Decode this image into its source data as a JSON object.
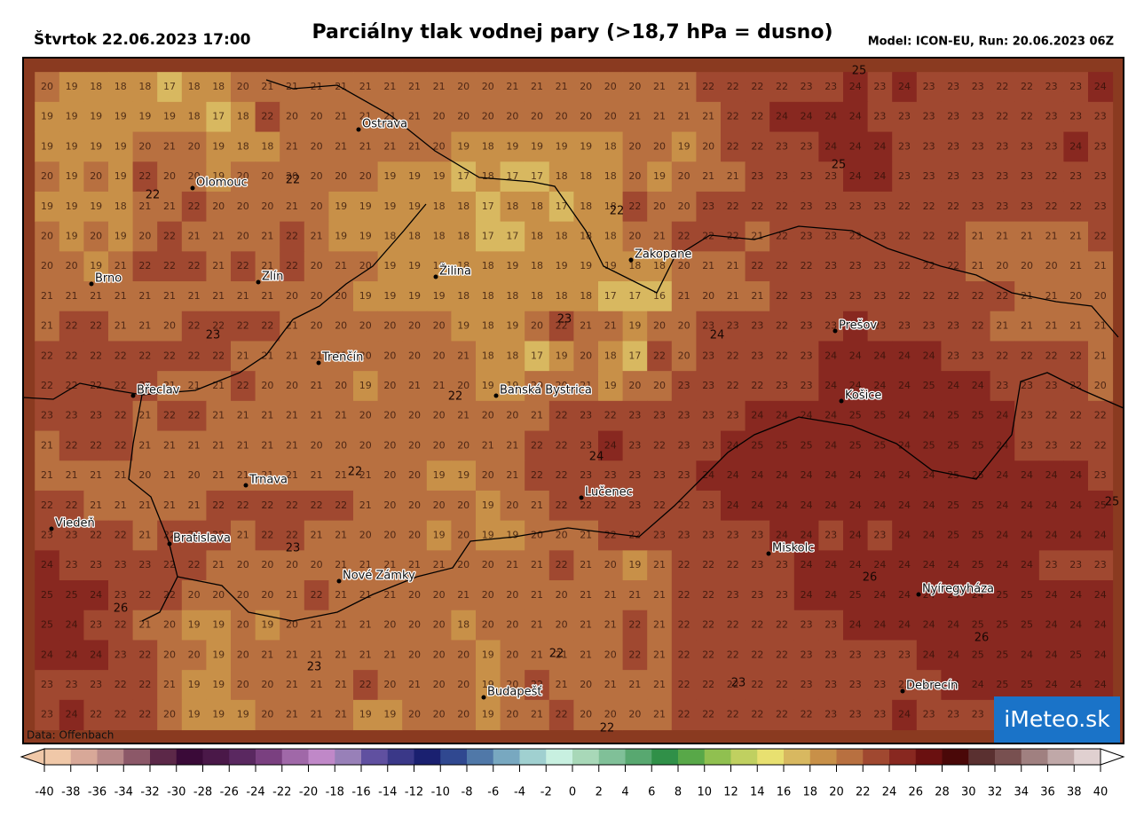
{
  "header": {
    "date": "Štvrtok 22.06.2023 17:00",
    "title": "Parciálny tlak vodnej pary (>18,7 hPa = dusno)",
    "model": "Model: ICON-EU, Run: 20.06.2023 06Z"
  },
  "source": "Data: Offenbach",
  "logo": "iMeteo.sk",
  "cities": [
    "Ostrava",
    "Olomouc",
    "Brno",
    "Zlín",
    "Žilina",
    "Zakopane",
    "Prešov",
    "Trenčín",
    "Břeclav",
    "Banská Bystrica",
    "Košice",
    "Trnava",
    "Lučenec",
    "Viedeň",
    "Bratislava",
    "Miskolc",
    "Nové Zámky",
    "Nyíregyháza",
    "Debrecín",
    "Budapešť"
  ],
  "contour_labels": [
    22,
    22,
    22,
    22,
    22,
    22,
    22,
    23,
    23,
    23,
    23,
    23,
    24,
    24,
    25,
    25,
    25,
    26,
    26,
    26
  ],
  "grid": [
    [
      20,
      19,
      18,
      18,
      18,
      17,
      18,
      18,
      20,
      21,
      21,
      21,
      21,
      21,
      21,
      21,
      21,
      20,
      20,
      21,
      21,
      21,
      20,
      20,
      20,
      21,
      21,
      22,
      22,
      22,
      22,
      23,
      23,
      24,
      23,
      24,
      23,
      23,
      23,
      22,
      22,
      23,
      23,
      24
    ],
    [
      19,
      19,
      19,
      19,
      19,
      19,
      18,
      17,
      18,
      22,
      20,
      20,
      21,
      21,
      21,
      21,
      20,
      20,
      20,
      20,
      20,
      20,
      20,
      20,
      21,
      21,
      21,
      21,
      22,
      22,
      24,
      24,
      24,
      24,
      23,
      23,
      23,
      23,
      23,
      22,
      22,
      23,
      23,
      23
    ],
    [
      19,
      19,
      19,
      19,
      20,
      21,
      20,
      19,
      18,
      18,
      21,
      20,
      21,
      21,
      21,
      21,
      20,
      19,
      18,
      19,
      19,
      19,
      19,
      18,
      20,
      20,
      19,
      20,
      22,
      22,
      23,
      23,
      24,
      24,
      24,
      23,
      23,
      23,
      23,
      23,
      23,
      23,
      24,
      23
    ],
    [
      20,
      19,
      20,
      19,
      22,
      20,
      20,
      19,
      20,
      20,
      20,
      20,
      20,
      20,
      19,
      19,
      19,
      17,
      18,
      17,
      17,
      18,
      18,
      18,
      20,
      19,
      20,
      21,
      21,
      23,
      23,
      23,
      23,
      24,
      24,
      23,
      23,
      23,
      23,
      23,
      23,
      22,
      23,
      23
    ],
    [
      19,
      19,
      19,
      18,
      21,
      21,
      22,
      20,
      20,
      20,
      21,
      20,
      19,
      19,
      19,
      19,
      18,
      18,
      17,
      18,
      18,
      17,
      18,
      18,
      22,
      20,
      20,
      23,
      22,
      22,
      22,
      23,
      23,
      23,
      23,
      22,
      22,
      22,
      23,
      23,
      23,
      22,
      22,
      23
    ],
    [
      20,
      19,
      20,
      19,
      20,
      22,
      21,
      21,
      20,
      21,
      22,
      21,
      19,
      19,
      18,
      18,
      18,
      18,
      17,
      17,
      18,
      18,
      18,
      18,
      20,
      21,
      22,
      22,
      22,
      21,
      22,
      23,
      23,
      23,
      23,
      22,
      22,
      22,
      21,
      21,
      21,
      21,
      21,
      22
    ],
    [
      20,
      20,
      19,
      21,
      22,
      22,
      22,
      21,
      22,
      21,
      22,
      20,
      21,
      20,
      19,
      19,
      18,
      18,
      18,
      19,
      18,
      19,
      19,
      19,
      18,
      18,
      20,
      21,
      21,
      22,
      22,
      22,
      23,
      23,
      23,
      22,
      22,
      22,
      21,
      20,
      20,
      20,
      21,
      21
    ],
    [
      21,
      21,
      21,
      21,
      21,
      21,
      21,
      21,
      21,
      21,
      20,
      20,
      20,
      19,
      19,
      19,
      19,
      18,
      18,
      18,
      18,
      18,
      18,
      17,
      17,
      16,
      21,
      20,
      21,
      21,
      22,
      23,
      23,
      23,
      23,
      22,
      22,
      22,
      22,
      22,
      21,
      21,
      20,
      20
    ],
    [
      21,
      22,
      22,
      21,
      21,
      20,
      22,
      22,
      22,
      22,
      21,
      20,
      20,
      20,
      20,
      20,
      20,
      19,
      18,
      19,
      20,
      22,
      21,
      21,
      19,
      20,
      20,
      23,
      23,
      23,
      22,
      23,
      23,
      24,
      23,
      23,
      23,
      23,
      22,
      21,
      21,
      21,
      21,
      21
    ],
    [
      22,
      22,
      22,
      22,
      22,
      22,
      22,
      22,
      21,
      21,
      21,
      21,
      21,
      20,
      20,
      20,
      20,
      21,
      18,
      18,
      17,
      19,
      20,
      18,
      17,
      22,
      20,
      23,
      22,
      23,
      22,
      23,
      24,
      24,
      24,
      24,
      24,
      23,
      23,
      22,
      22,
      22,
      22,
      21
    ],
    [
      22,
      22,
      22,
      22,
      22,
      21,
      21,
      21,
      22,
      20,
      20,
      21,
      20,
      19,
      20,
      21,
      21,
      20,
      19,
      19,
      20,
      20,
      21,
      19,
      20,
      20,
      23,
      23,
      22,
      22,
      23,
      23,
      24,
      24,
      24,
      24,
      25,
      24,
      24,
      23,
      23,
      23,
      22,
      20
    ],
    [
      23,
      23,
      23,
      22,
      21,
      22,
      22,
      21,
      21,
      21,
      21,
      21,
      21,
      20,
      20,
      20,
      20,
      21,
      20,
      20,
      21,
      22,
      23,
      22,
      23,
      23,
      23,
      23,
      23,
      24,
      24,
      24,
      24,
      25,
      25,
      24,
      24,
      25,
      25,
      24,
      23,
      22,
      22,
      22
    ],
    [
      21,
      22,
      22,
      22,
      21,
      21,
      21,
      21,
      21,
      21,
      21,
      20,
      20,
      20,
      20,
      20,
      20,
      20,
      21,
      21,
      22,
      22,
      23,
      24,
      23,
      22,
      23,
      23,
      24,
      25,
      25,
      25,
      24,
      25,
      25,
      24,
      25,
      25,
      25,
      24,
      23,
      23,
      22,
      22
    ],
    [
      21,
      21,
      21,
      21,
      20,
      21,
      20,
      21,
      21,
      21,
      21,
      21,
      21,
      21,
      20,
      20,
      19,
      19,
      20,
      21,
      22,
      22,
      23,
      23,
      23,
      23,
      23,
      24,
      24,
      24,
      24,
      24,
      24,
      24,
      24,
      24,
      24,
      25,
      25,
      24,
      24,
      24,
      24,
      23
    ],
    [
      22,
      22,
      21,
      21,
      21,
      21,
      21,
      22,
      22,
      22,
      22,
      22,
      22,
      21,
      20,
      20,
      20,
      20,
      19,
      20,
      21,
      22,
      22,
      22,
      23,
      22,
      22,
      23,
      24,
      24,
      24,
      24,
      24,
      24,
      24,
      24,
      24,
      25,
      25,
      24,
      24,
      24,
      24,
      25
    ],
    [
      23,
      23,
      22,
      22,
      21,
      22,
      22,
      22,
      21,
      22,
      22,
      21,
      21,
      20,
      20,
      20,
      19,
      20,
      19,
      19,
      20,
      20,
      21,
      22,
      22,
      23,
      23,
      23,
      23,
      23,
      24,
      24,
      23,
      24,
      23,
      24,
      24,
      25,
      25,
      24,
      24,
      24,
      24,
      24
    ],
    [
      24,
      23,
      23,
      23,
      23,
      22,
      22,
      21,
      20,
      20,
      20,
      20,
      21,
      21,
      21,
      21,
      21,
      20,
      20,
      21,
      21,
      22,
      21,
      20,
      19,
      21,
      22,
      22,
      22,
      23,
      23,
      24,
      24,
      24,
      24,
      24,
      24,
      24,
      25,
      24,
      24,
      23,
      23,
      23
    ],
    [
      25,
      25,
      24,
      23,
      22,
      22,
      20,
      20,
      20,
      20,
      21,
      22,
      21,
      21,
      21,
      20,
      20,
      21,
      20,
      20,
      21,
      20,
      21,
      21,
      21,
      21,
      22,
      22,
      23,
      23,
      23,
      24,
      24,
      25,
      24,
      24,
      24,
      24,
      24,
      25,
      25,
      24,
      24,
      24
    ],
    [
      25,
      24,
      23,
      22,
      21,
      20,
      19,
      19,
      20,
      19,
      20,
      21,
      21,
      21,
      20,
      20,
      20,
      18,
      20,
      20,
      21,
      20,
      21,
      21,
      22,
      21,
      22,
      22,
      22,
      22,
      22,
      23,
      23,
      24,
      24,
      24,
      24,
      24,
      25,
      25,
      25,
      24,
      24,
      24
    ],
    [
      24,
      24,
      24,
      23,
      22,
      20,
      20,
      19,
      20,
      21,
      21,
      21,
      21,
      21,
      21,
      20,
      20,
      20,
      19,
      20,
      21,
      21,
      21,
      20,
      22,
      21,
      22,
      22,
      22,
      22,
      22,
      23,
      23,
      23,
      23,
      23,
      24,
      24,
      25,
      25,
      24,
      24,
      25,
      24
    ],
    [
      23,
      23,
      23,
      22,
      22,
      21,
      19,
      19,
      20,
      20,
      21,
      21,
      21,
      22,
      20,
      21,
      20,
      20,
      19,
      20,
      22,
      21,
      20,
      21,
      21,
      21,
      22,
      22,
      22,
      22,
      22,
      23,
      23,
      23,
      23,
      23,
      23,
      24,
      24,
      25,
      25,
      24,
      24,
      24
    ],
    [
      23,
      24,
      22,
      22,
      22,
      20,
      19,
      19,
      19,
      20,
      21,
      21,
      21,
      19,
      19,
      20,
      20,
      20,
      19,
      20,
      21,
      22,
      20,
      20,
      20,
      21,
      22,
      22,
      22,
      22,
      22,
      22,
      23,
      23,
      23,
      24,
      23,
      23,
      23,
      23,
      23,
      23,
      23,
      23
    ]
  ],
  "colorbar": {
    "xlim": [
      -40,
      40
    ],
    "ticks": [
      -40,
      -38,
      -36,
      -34,
      -32,
      -30,
      -28,
      -26,
      -24,
      -22,
      -20,
      -18,
      -16,
      -14,
      -12,
      -10,
      -8,
      -6,
      -4,
      -2,
      0,
      2,
      4,
      6,
      8,
      10,
      12,
      14,
      16,
      18,
      20,
      22,
      24,
      26,
      28,
      30,
      32,
      34,
      36,
      38,
      40
    ],
    "colors": [
      "#f0c8a8",
      "#d8a898",
      "#b88888",
      "#8c5868",
      "#5c2848",
      "#3a0a38",
      "#4a1848",
      "#5a2860",
      "#7a4080",
      "#a068a8",
      "#c088c8",
      "#9880b8",
      "#6050a0",
      "#3a3888",
      "#1a2070",
      "#304890",
      "#5078a8",
      "#78a8c0",
      "#a0d0d0",
      "#c8f0e0",
      "#a8d8b8",
      "#80c098",
      "#58a870",
      "#309048",
      "#58a848",
      "#90c050",
      "#c0d060",
      "#e8e070",
      "#d8b860",
      "#c89048",
      "#b87040",
      "#a04830",
      "#882820",
      "#6a1010",
      "#4a0808",
      "#5a3030",
      "#785050",
      "#a08080",
      "#c0a8a8",
      "#e0d0d0"
    ]
  }
}
